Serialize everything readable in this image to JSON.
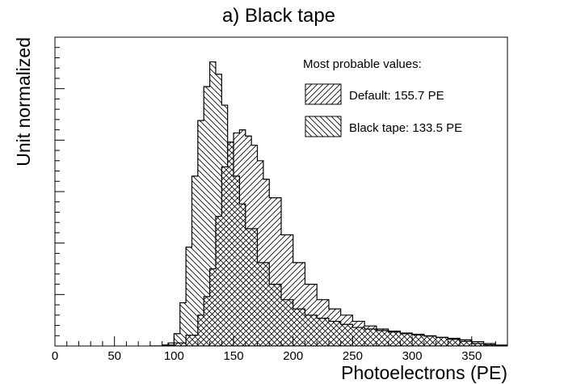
{
  "chart_data": {
    "type": "area",
    "title": "a) Black tape",
    "xlabel": "Photoelectrons (PE)",
    "ylabel": "Unit normalized",
    "xlim": [
      0,
      380
    ],
    "ylim": [
      0,
      1.0
    ],
    "x_ticks": [
      0,
      50,
      100,
      150,
      200,
      250,
      300,
      350
    ],
    "y_tick_labels_shown": false,
    "legend": {
      "header": "Most probable values:",
      "placement": "top-right"
    },
    "series": [
      {
        "name": "Default: 155.7 PE",
        "hatch": "forward-diagonal",
        "x": [
          80,
          90,
          100,
          110,
          120,
          125,
          130,
          135,
          140,
          145,
          150,
          155,
          160,
          165,
          170,
          175,
          180,
          190,
          200,
          210,
          220,
          230,
          240,
          250,
          260,
          270,
          280,
          290,
          300,
          310,
          320,
          330,
          340,
          350,
          360,
          370,
          380
        ],
        "values": [
          0.0,
          0.003,
          0.01,
          0.035,
          0.1,
          0.16,
          0.25,
          0.42,
          0.58,
          0.66,
          0.69,
          0.7,
          0.68,
          0.65,
          0.6,
          0.54,
          0.48,
          0.36,
          0.27,
          0.2,
          0.15,
          0.12,
          0.1,
          0.08,
          0.065,
          0.055,
          0.048,
          0.042,
          0.038,
          0.033,
          0.028,
          0.022,
          0.015,
          0.008,
          0.004,
          0.002,
          0.0
        ]
      },
      {
        "name": "Black tape: 133.5 PE",
        "hatch": "back-diagonal",
        "x": [
          80,
          90,
          95,
          100,
          105,
          110,
          115,
          120,
          125,
          130,
          135,
          140,
          145,
          150,
          155,
          160,
          170,
          180,
          190,
          200,
          210,
          220,
          230,
          240,
          250,
          260,
          270,
          280,
          290,
          300,
          310,
          320,
          330,
          340,
          350,
          360,
          370,
          380
        ],
        "values": [
          0.0,
          0.003,
          0.01,
          0.04,
          0.14,
          0.32,
          0.55,
          0.73,
          0.84,
          0.92,
          0.88,
          0.78,
          0.66,
          0.55,
          0.46,
          0.38,
          0.27,
          0.2,
          0.15,
          0.12,
          0.1,
          0.09,
          0.08,
          0.07,
          0.06,
          0.055,
          0.05,
          0.045,
          0.04,
          0.036,
          0.032,
          0.028,
          0.025,
          0.02,
          0.014,
          0.008,
          0.003,
          0.0
        ]
      }
    ]
  }
}
